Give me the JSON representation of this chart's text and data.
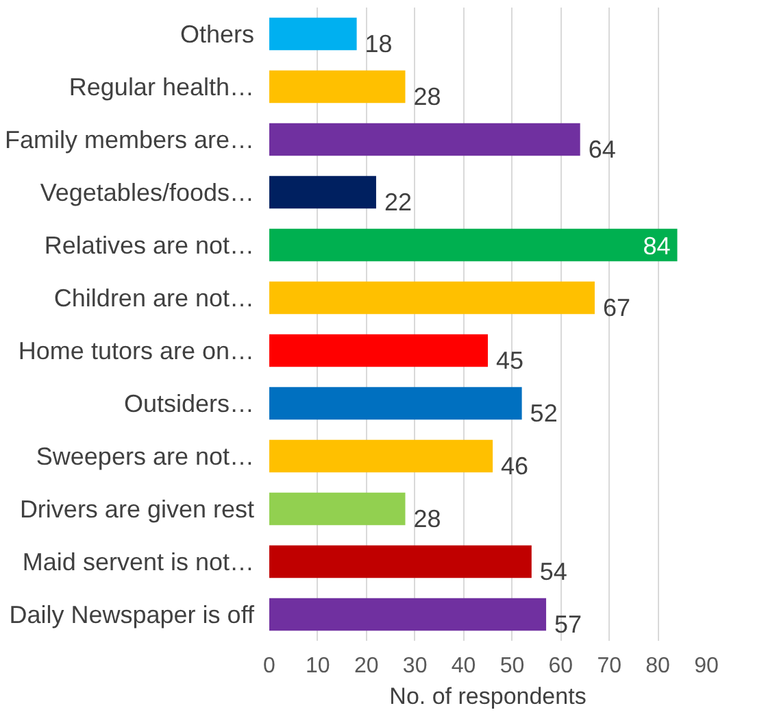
{
  "chart_data": {
    "type": "bar",
    "orientation": "horizontal",
    "xlabel": "No. of respondents",
    "categories": [
      "Others",
      "Regular health…",
      "Family members are…",
      "Vegetables/foods…",
      "Relatives are not…",
      "Children are not…",
      "Home tutors are on…",
      "Outsiders…",
      "Sweepers are not…",
      "Drivers are given rest",
      "Maid servent is not…",
      "Daily Newspaper is off"
    ],
    "values": [
      18,
      28,
      64,
      22,
      84,
      67,
      45,
      52,
      46,
      28,
      54,
      57
    ],
    "colors": [
      "#00b0f0",
      "#ffc000",
      "#7030a0",
      "#002060",
      "#00b050",
      "#ffc000",
      "#ff0000",
      "#0070c0",
      "#ffc000",
      "#92d050",
      "#c00000",
      "#7030a0"
    ],
    "xlim": [
      0,
      90
    ],
    "xticks": [
      0,
      10,
      20,
      30,
      40,
      50,
      60,
      70,
      80,
      90
    ],
    "grid": "x",
    "data_labels": true
  }
}
